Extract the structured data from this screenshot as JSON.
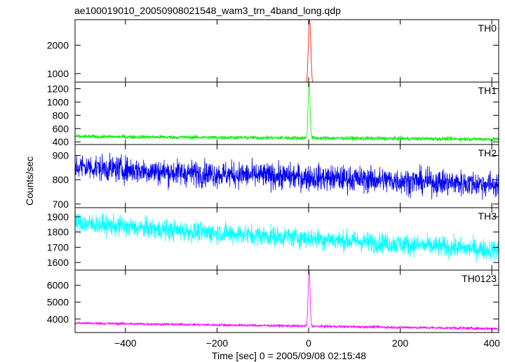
{
  "chart_data": {
    "type": "line",
    "title": "ae100019010_20050908021548_wam3_trn_4band_long.qdp",
    "xlabel": "Time [sec] 0 = 2005/09/08 02:15:48",
    "ylabel": "Counts/sec",
    "xlim": [
      -510,
      415
    ],
    "xticks": [
      -400,
      -200,
      0,
      200,
      400
    ],
    "grid": false,
    "panels": [
      {
        "name": "TH0",
        "color": "#ff0000",
        "ylim": [
          700,
          2900
        ],
        "yticks": [
          1000,
          2000
        ],
        "baseline": [
          [
            -510,
            560
          ],
          [
            415,
            510
          ]
        ],
        "noise": 20,
        "peak": {
          "x": 2,
          "value": 2900,
          "width": 4
        }
      },
      {
        "name": "TH1",
        "color": "#00ee00",
        "ylim": [
          360,
          1300
        ],
        "yticks": [
          400,
          600,
          800,
          1000,
          1200
        ],
        "baseline": [
          [
            -510,
            480
          ],
          [
            415,
            440
          ]
        ],
        "noise": 22,
        "peak": {
          "x": 1,
          "value": 1300,
          "width": 3
        }
      },
      {
        "name": "TH2",
        "color": "#0000ee",
        "ylim": [
          685,
          945
        ],
        "yticks": [
          700,
          800,
          900
        ],
        "baseline": [
          [
            -510,
            855
          ],
          [
            -300,
            830
          ],
          [
            0,
            810
          ],
          [
            415,
            780
          ]
        ],
        "noise": 38,
        "peak": null
      },
      {
        "name": "TH3",
        "color": "#00ffff",
        "ylim": [
          1550,
          1960
        ],
        "yticks": [
          1600,
          1700,
          1800,
          1900
        ],
        "baseline": [
          [
            -510,
            1860
          ],
          [
            -300,
            1810
          ],
          [
            0,
            1760
          ],
          [
            200,
            1720
          ],
          [
            415,
            1680
          ]
        ],
        "noise": 48,
        "peak": null
      },
      {
        "name": "TH0123",
        "color": "#ff00ff",
        "ylim": [
          3200,
          6900
        ],
        "yticks": [
          4000,
          5000,
          6000
        ],
        "baseline": [
          [
            -510,
            3760
          ],
          [
            415,
            3430
          ]
        ],
        "noise": 60,
        "peak": {
          "x": 1,
          "value": 6900,
          "width": 3
        }
      }
    ]
  }
}
